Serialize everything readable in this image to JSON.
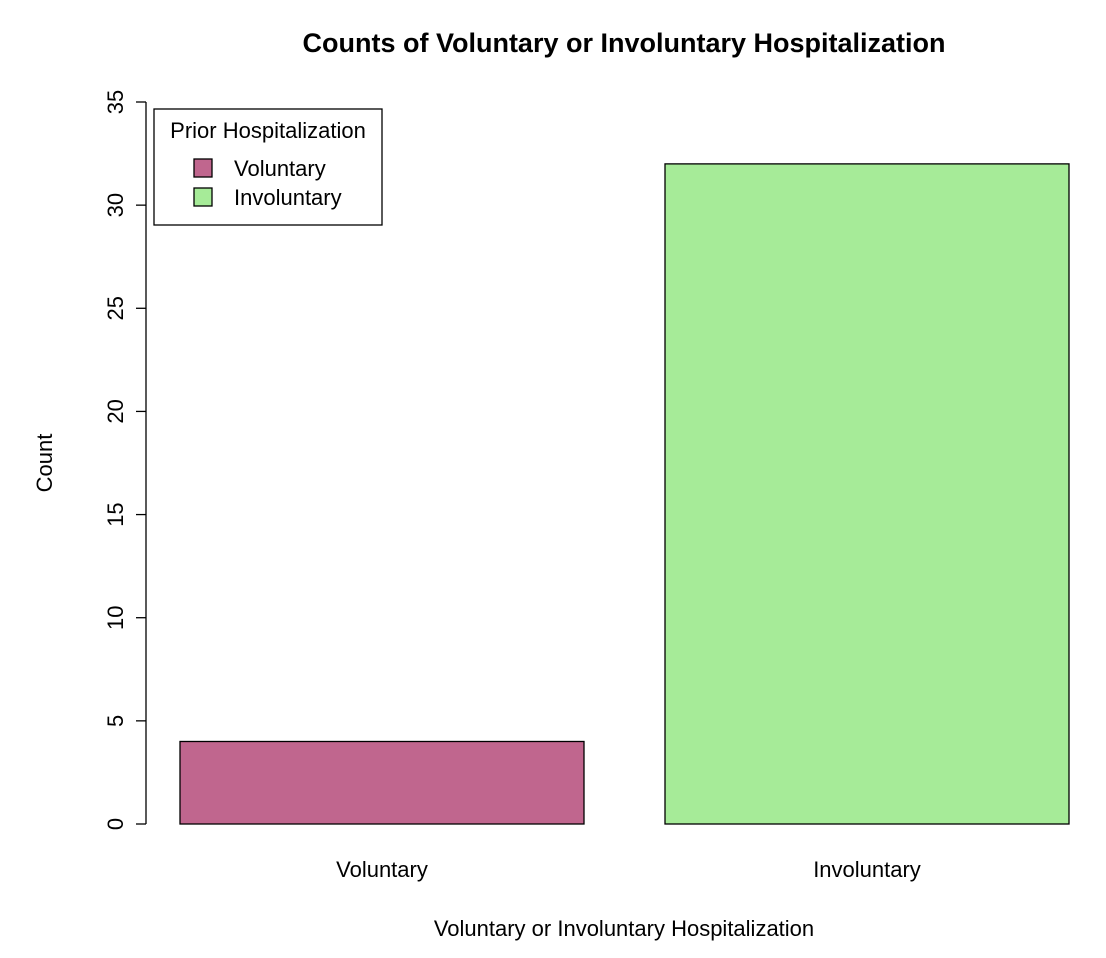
{
  "chart_data": {
    "type": "bar",
    "title": "Counts of Voluntary or Involuntary Hospitalization",
    "xlabel": "Voluntary or Involuntary Hospitalization",
    "ylabel": "Count",
    "categories": [
      "Voluntary",
      "Involuntary"
    ],
    "values": [
      4,
      32
    ],
    "colors": [
      "#c0668e",
      "#a6eb98"
    ],
    "ylim": [
      0,
      35
    ],
    "yticks": [
      0,
      5,
      10,
      15,
      20,
      25,
      30,
      35
    ],
    "grid": false,
    "legend": {
      "title": "Prior Hospitalization",
      "placement": "top-left",
      "entries": [
        {
          "label": "Voluntary",
          "color": "#c0668e"
        },
        {
          "label": "Involuntary",
          "color": "#a6eb98"
        }
      ]
    }
  }
}
